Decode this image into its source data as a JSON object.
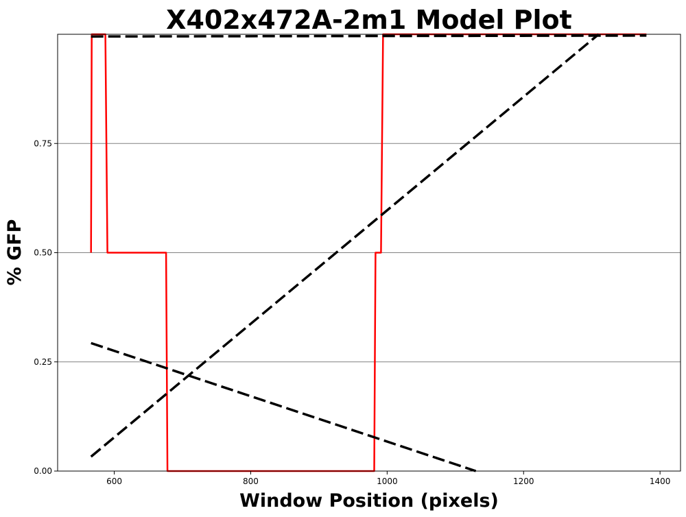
{
  "chart_data": {
    "type": "line",
    "title": "X402x472A-2m1 Model Plot",
    "xlabel": "Window Position (pixels)",
    "ylabel": "% GFP",
    "xlim": [
      517,
      1430
    ],
    "ylim": [
      0,
      1.0
    ],
    "xticks": [
      600,
      800,
      1000,
      1200,
      1400
    ],
    "yticks": [
      0.0,
      0.25,
      0.5,
      0.75
    ],
    "ytick_labels": [
      "0.00",
      "0.25",
      "0.50",
      "0.75"
    ],
    "grid": "horizontal",
    "series": [
      {
        "color": "#ff0000",
        "dashed": false,
        "x": [
          566,
          567,
          587,
          590,
          676,
          678,
          981,
          983,
          991,
          994,
          1380
        ],
        "y": [
          0.5,
          1.0,
          1.0,
          0.5,
          0.5,
          0.0,
          0.0,
          0.5,
          0.5,
          1.0,
          1.0
        ]
      },
      {
        "color": "#000000",
        "dashed": true,
        "x": [
          566,
          1380
        ],
        "y": [
          0.995,
          0.997
        ]
      },
      {
        "color": "#000000",
        "dashed": true,
        "x": [
          566,
          1310
        ],
        "y": [
          0.033,
          1.0
        ]
      },
      {
        "color": "#000000",
        "dashed": true,
        "x": [
          566,
          1130
        ],
        "y": [
          0.293,
          0.0
        ]
      }
    ]
  }
}
